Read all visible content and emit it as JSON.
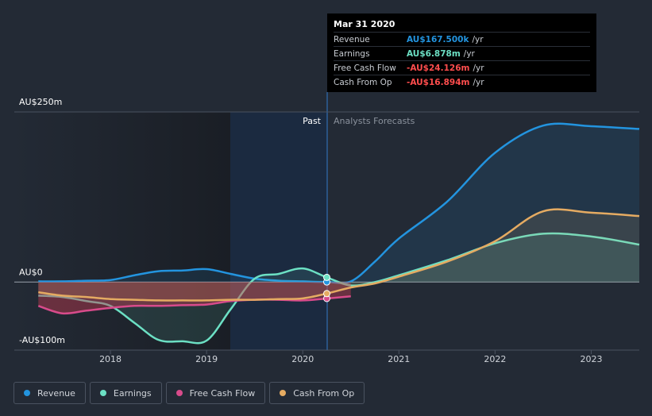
{
  "chart_data": {
    "type": "line",
    "x": [
      2017.25,
      2017.5,
      2017.75,
      2018,
      2018.25,
      2018.5,
      2018.75,
      2019,
      2019.25,
      2019.5,
      2019.75,
      2020,
      2020.25,
      2020.5,
      2020.75,
      2021,
      2021.5,
      2022,
      2022.5,
      2023,
      2023.5
    ],
    "xlim": [
      2017,
      2023.5
    ],
    "xticks": [
      2018,
      2019,
      2020,
      2021,
      2022,
      2023
    ],
    "ylim": [
      -100,
      250
    ],
    "yticks": [
      {
        "value": -100,
        "label": "-AU$100m"
      },
      {
        "value": 0,
        "label": "AU$0"
      },
      {
        "value": 250,
        "label": "AU$250m"
      }
    ],
    "series": [
      {
        "name": "Revenue",
        "color": "#2394df",
        "values": [
          1,
          1,
          2,
          3,
          10,
          16,
          17,
          19,
          12,
          5,
          2,
          1,
          0.1675,
          1,
          30,
          64,
          118,
          190,
          230,
          229,
          225
        ]
      },
      {
        "name": "Earnings",
        "color": "#6ce0c4",
        "values": [
          -20,
          -22,
          -28,
          -35,
          -60,
          -85,
          -87,
          -86,
          -40,
          5,
          12,
          20,
          6.878,
          -5,
          0,
          10,
          32,
          57,
          71,
          67,
          55
        ]
      },
      {
        "name": "Free Cash Flow",
        "color": "#d84b8b",
        "values": [
          -35,
          -46,
          -42,
          -38,
          -35,
          -35,
          -34,
          -33,
          -28,
          -26,
          -26,
          -27,
          -24.126,
          -21,
          null,
          null,
          null,
          null,
          null,
          null,
          null
        ]
      },
      {
        "name": "Cash From Op",
        "color": "#e5ab62",
        "values": [
          -15,
          -20,
          -22,
          -25,
          -26,
          -27,
          -27,
          -27,
          -26,
          -26,
          -25,
          -24,
          -16.894,
          -8,
          -2,
          8,
          30,
          60,
          104,
          102,
          97
        ]
      }
    ],
    "annotations": [
      "Past",
      "Analysts Forecasts"
    ],
    "tooltip": {
      "title": "Mar 31 2020",
      "rows": [
        {
          "label": "Revenue",
          "value": "AU$167.500k",
          "unit": "/yr",
          "color": "#2394df"
        },
        {
          "label": "Earnings",
          "value": "AU$6.878m",
          "unit": "/yr",
          "color": "#6ce0c4"
        },
        {
          "label": "Free Cash Flow",
          "value": "-AU$24.126m",
          "unit": "/yr",
          "color": "#ff4d4d"
        },
        {
          "label": "Cash From Op",
          "value": "-AU$16.894m",
          "unit": "/yr",
          "color": "#ff4d4d"
        }
      ]
    }
  }
}
